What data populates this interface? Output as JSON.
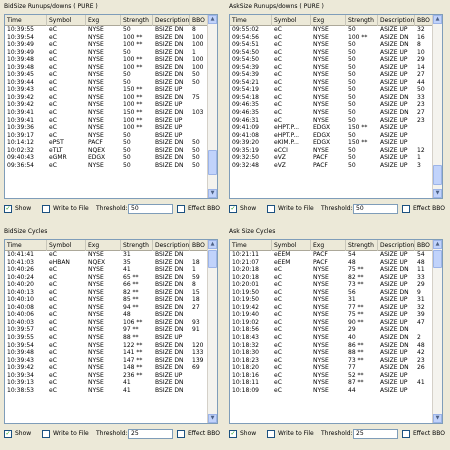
{
  "columns": [
    "Time",
    "Symbol",
    "Exg",
    "Strength",
    "Description",
    "BBO"
  ],
  "panels": [
    {
      "title": "BidSize Runups/downs ( PURE )",
      "rows": [
        [
          "10:39:55",
          "eC",
          "NYSE",
          "50",
          "BSIZE DN",
          "8"
        ],
        [
          "10:39:54",
          "eC",
          "NYSE",
          "100 **",
          "BSIZE DN",
          "100"
        ],
        [
          "10:39:49",
          "eC",
          "NYSE",
          "100 **",
          "BSIZE DN",
          "100"
        ],
        [
          "10:39:49",
          "eC",
          "NYSE",
          "50",
          "BSIZE DN",
          "1"
        ],
        [
          "10:39:48",
          "eC",
          "NYSE",
          "100 **",
          "BSIZE DN",
          "100"
        ],
        [
          "10:39:48",
          "eC",
          "NYSE",
          "100 **",
          "BSIZE DN",
          "100"
        ],
        [
          "10:39:45",
          "eC",
          "NYSE",
          "50",
          "BSIZE DN",
          "50"
        ],
        [
          "10:39:44",
          "eC",
          "NYSE",
          "50",
          "BSIZE DN",
          "50"
        ],
        [
          "10:39:43",
          "eC",
          "NYSE",
          "150 **",
          "BSIZE UP",
          ""
        ],
        [
          "10:39:42",
          "eC",
          "NYSE",
          "100 **",
          "BSIZE DN",
          "75"
        ],
        [
          "10:39:42",
          "eC",
          "NYSE",
          "100 **",
          "BSIZE UP",
          ""
        ],
        [
          "10:39:41",
          "eC",
          "NYSE",
          "150 **",
          "BSIZE DN",
          "103"
        ],
        [
          "10:39:41",
          "eC",
          "NYSE",
          "100 **",
          "BSIZE UP",
          ""
        ],
        [
          "10:39:36",
          "eC",
          "NYSE",
          "100 **",
          "BSIZE UP",
          ""
        ],
        [
          "10:39:17",
          "eC",
          "NYSE",
          "50",
          "BSIZE UP",
          ""
        ],
        [
          "10:14:12",
          "ePST",
          "PACF",
          "50",
          "BSIZE DN",
          "50"
        ],
        [
          "10:02:32",
          "eTLT",
          "NQEX",
          "50",
          "BSIZE DN",
          "50"
        ],
        [
          "09:40:43",
          "eGMR",
          "EDGX",
          "50",
          "BSIZE DN",
          "50"
        ],
        [
          "09:36:54",
          "eC",
          "NYSE",
          "50",
          "BSIZE DN",
          "50"
        ]
      ],
      "show": true,
      "write_to_file": false,
      "threshold_label": "Threshold:",
      "threshold": "50",
      "effect_bbo": false
    },
    {
      "title": "AskSize Runups/downs ( PURE )",
      "rows": [
        [
          "09:55:02",
          "eC",
          "NYSE",
          "50",
          "ASIZE UP",
          "32"
        ],
        [
          "09:54:56",
          "eC",
          "NYSE",
          "100 **",
          "ASIZE DN",
          "16"
        ],
        [
          "09:54:51",
          "eC",
          "NYSE",
          "50",
          "ASIZE DN",
          "8"
        ],
        [
          "09:54:50",
          "eC",
          "NYSE",
          "50",
          "ASIZE UP",
          "10"
        ],
        [
          "09:54:50",
          "eC",
          "NYSE",
          "50",
          "ASIZE UP",
          "29"
        ],
        [
          "09:54:39",
          "eC",
          "NYSE",
          "50",
          "ASIZE UP",
          "14"
        ],
        [
          "09:54:39",
          "eC",
          "NYSE",
          "50",
          "ASIZE UP",
          "27"
        ],
        [
          "09:54:21",
          "eC",
          "NYSE",
          "50",
          "ASIZE UP",
          "44"
        ],
        [
          "09:54:19",
          "eC",
          "NYSE",
          "50",
          "ASIZE UP",
          "50"
        ],
        [
          "09:54:18",
          "eC",
          "NYSE",
          "50",
          "ASIZE DN",
          "33"
        ],
        [
          "09:46:35",
          "eC",
          "NYSE",
          "50",
          "ASIZE UP",
          "23"
        ],
        [
          "09:46:35",
          "eC",
          "NYSE",
          "50",
          "ASIZE DN",
          "27"
        ],
        [
          "09:46:31",
          "eC",
          "NYSE",
          "50",
          "ASIZE UP",
          "23"
        ],
        [
          "09:41:09",
          "eHPT.P...",
          "EDGX",
          "150 **",
          "ASIZE UP",
          ""
        ],
        [
          "09:41:08",
          "eHPT.P...",
          "EDGX",
          "50",
          "ASIZE UP",
          ""
        ],
        [
          "09:39:20",
          "eKIM.P...",
          "EDGX",
          "150 **",
          "ASIZE UP",
          ""
        ],
        [
          "09:35:19",
          "eCCI",
          "NYSE",
          "50",
          "ASIZE UP",
          "12"
        ],
        [
          "09:32:50",
          "eVZ",
          "PACF",
          "50",
          "ASIZE UP",
          "1"
        ],
        [
          "09:32:48",
          "eVZ",
          "PACF",
          "50",
          "ASIZE UP",
          "3"
        ]
      ],
      "show": true,
      "write_to_file": false,
      "threshold_label": "Threshold:",
      "threshold": "50",
      "effect_bbo": false
    },
    {
      "title": "BidSize Cycles",
      "rows": [
        [
          "10:41:41",
          "eC",
          "NYSE",
          "31",
          "BSIZE DN",
          ""
        ],
        [
          "10:41:03",
          "eHBAN",
          "NQEX",
          "35",
          "BSIZE DN",
          "18"
        ],
        [
          "10:40:26",
          "eC",
          "NYSE",
          "41",
          "BSIZE DN",
          "1"
        ],
        [
          "10:40:24",
          "eC",
          "NYSE",
          "65 **",
          "BSIZE DN",
          "59"
        ],
        [
          "10:40:20",
          "eC",
          "NYSE",
          "66 **",
          "BSIZE DN",
          "8"
        ],
        [
          "10:40:13",
          "eC",
          "NYSE",
          "82 **",
          "BSIZE DN",
          "15"
        ],
        [
          "10:40:10",
          "eC",
          "NYSE",
          "85 **",
          "BSIZE DN",
          "18"
        ],
        [
          "10:40:08",
          "eC",
          "NYSE",
          "94 **",
          "BSIZE DN",
          "27"
        ],
        [
          "10:40:06",
          "eC",
          "NYSE",
          "48",
          "BSIZE DN",
          ""
        ],
        [
          "10:40:03",
          "eC",
          "NYSE",
          "106 **",
          "BSIZE DN",
          "93"
        ],
        [
          "10:39:57",
          "eC",
          "NYSE",
          "97 **",
          "BSIZE DN",
          "91"
        ],
        [
          "10:39:55",
          "eC",
          "NYSE",
          "88 **",
          "BSIZE UP",
          ""
        ],
        [
          "10:39:54",
          "eC",
          "NYSE",
          "122 **",
          "BSIZE DN",
          "120"
        ],
        [
          "10:39:48",
          "eC",
          "NYSE",
          "141 **",
          "BSIZE DN",
          "133"
        ],
        [
          "10:39:43",
          "eC",
          "NYSE",
          "147 **",
          "BSIZE DN",
          "139"
        ],
        [
          "10:39:42",
          "eC",
          "NYSE",
          "148 **",
          "BSIZE DN",
          "69"
        ],
        [
          "10:39:34",
          "eC",
          "NYSE",
          "236 **",
          "BSIZE UP",
          ""
        ],
        [
          "10:39:13",
          "eC",
          "NYSE",
          "41",
          "BSIZE DN",
          ""
        ],
        [
          "10:38:53",
          "eC",
          "NYSE",
          "41",
          "BSIZE DN",
          ""
        ]
      ],
      "show": true,
      "write_to_file": false,
      "threshold_label": "Threshold:",
      "threshold": "25",
      "effect_bbo": false
    },
    {
      "title": "Ask Size Cycles",
      "rows": [
        [
          "10:21:11",
          "eEEM",
          "PACF",
          "54",
          "ASIZE UP",
          "54"
        ],
        [
          "10:21:07",
          "eEEM",
          "PACF",
          "48",
          "ASIZE UP",
          "48"
        ],
        [
          "10:20:18",
          "eC",
          "NYSE",
          "75 **",
          "ASIZE DN",
          "11"
        ],
        [
          "10:20:18",
          "eC",
          "NYSE",
          "82 **",
          "ASIZE UP",
          "33"
        ],
        [
          "10:20:01",
          "eC",
          "NYSE",
          "73 **",
          "ASIZE UP",
          "29"
        ],
        [
          "10:19:50",
          "eC",
          "NYSE",
          "56",
          "ASIZE DN",
          "9"
        ],
        [
          "10:19:50",
          "eC",
          "NYSE",
          "31",
          "ASIZE UP",
          "31"
        ],
        [
          "10:19:42",
          "eC",
          "NYSE",
          "77 **",
          "ASIZE UP",
          "32"
        ],
        [
          "10:19:40",
          "eC",
          "NYSE",
          "75 **",
          "ASIZE UP",
          "39"
        ],
        [
          "10:19:02",
          "eC",
          "NYSE",
          "90 **",
          "ASIZE UP",
          "47"
        ],
        [
          "10:18:56",
          "eC",
          "NYSE",
          "29",
          "ASIZE DN",
          ""
        ],
        [
          "10:18:43",
          "eC",
          "NYSE",
          "40",
          "ASIZE DN",
          "2"
        ],
        [
          "10:18:32",
          "eC",
          "NYSE",
          "86 **",
          "ASIZE DN",
          "48"
        ],
        [
          "10:18:30",
          "eC",
          "NYSE",
          "88 **",
          "ASIZE UP",
          "42"
        ],
        [
          "10:18:23",
          "eC",
          "NYSE",
          "73 **",
          "ASIZE UP",
          "23"
        ],
        [
          "10:18:20",
          "eC",
          "NYSE",
          "77",
          "ASIZE DN",
          "26"
        ],
        [
          "10:18:16",
          "eC",
          "NYSE",
          "52 **",
          "ASIZE UP",
          ""
        ],
        [
          "10:18:11",
          "eC",
          "NYSE",
          "87 **",
          "ASIZE UP",
          "41"
        ],
        [
          "10:18:09",
          "eC",
          "NYSE",
          "44",
          "ASIZE UP",
          ""
        ]
      ],
      "show": true,
      "write_to_file": false,
      "threshold_label": "Threshold:",
      "threshold": "25",
      "effect_bbo": false
    }
  ],
  "labels": {
    "show": "Show",
    "write_to_file": "Write to File",
    "effect_bbo": "Effect BBO"
  }
}
